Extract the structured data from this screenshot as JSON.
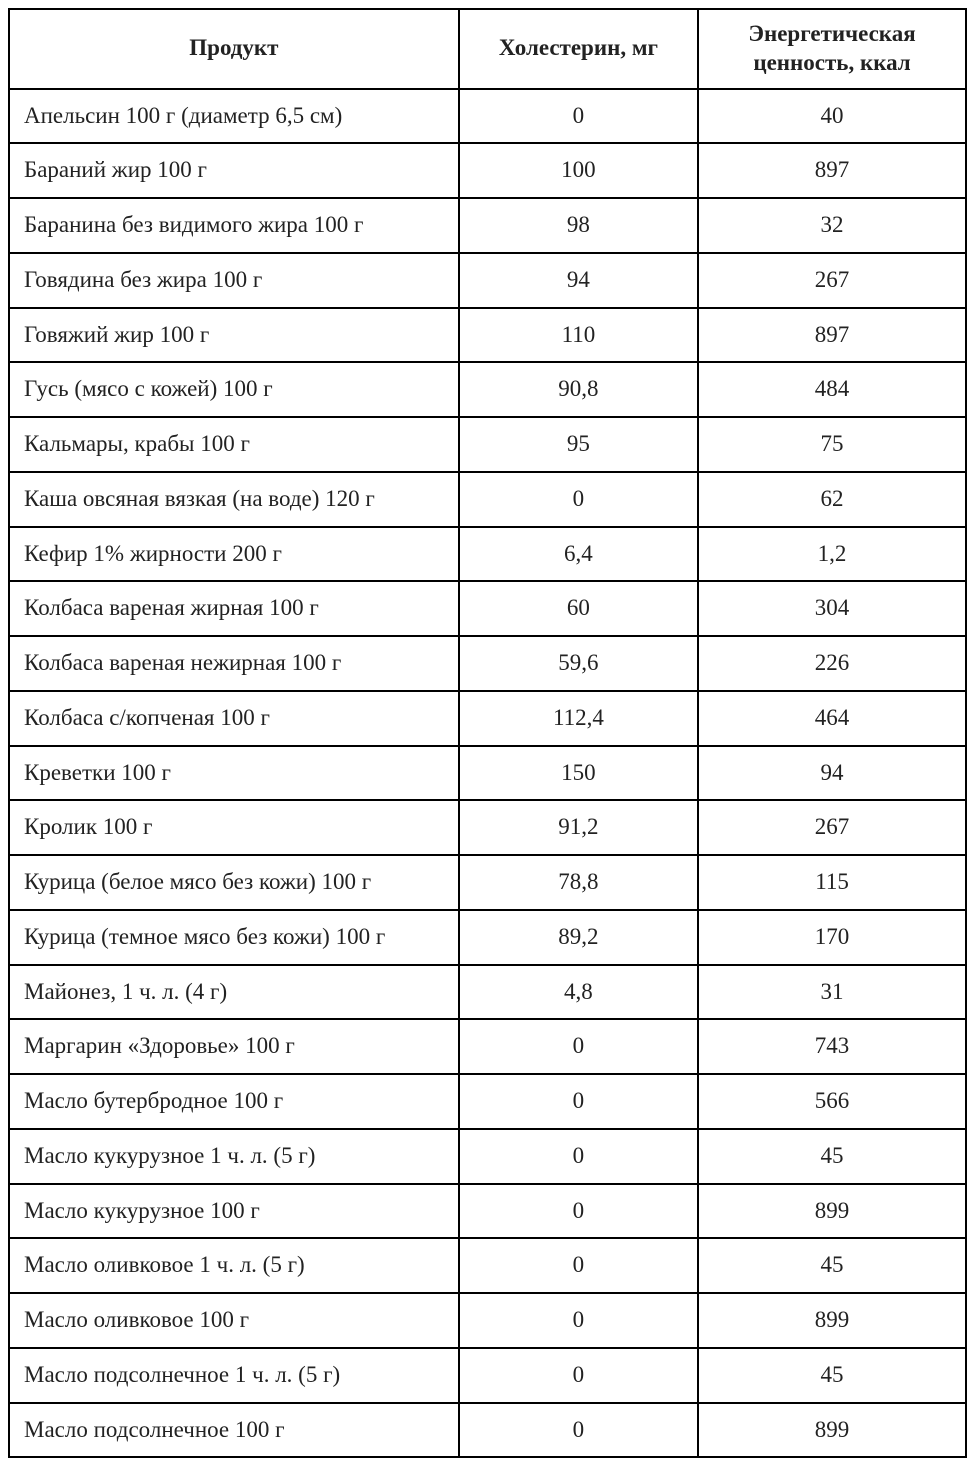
{
  "table": {
    "type": "table",
    "border_color": "#000000",
    "background_color": "#ffffff",
    "text_color": "#222222",
    "header_fontsize": 23,
    "cell_fontsize": 23,
    "border_width": 2,
    "columns": [
      {
        "key": "product",
        "label": "Продукт",
        "align": "left",
        "width_pct": 47
      },
      {
        "key": "cholesterol",
        "label": "Холестерин, мг",
        "align": "center",
        "width_pct": 25
      },
      {
        "key": "energy",
        "label": "Энергетическая ценность, ккал",
        "align": "center",
        "width_pct": 28
      }
    ],
    "rows": [
      {
        "product": "Апельсин 100 г (диаметр 6,5 см)",
        "cholesterol": "0",
        "energy": "40"
      },
      {
        "product": "Бараний жир 100 г",
        "cholesterol": "100",
        "energy": "897"
      },
      {
        "product": "Баранина без видимого жира 100 г",
        "cholesterol": "98",
        "energy": "32"
      },
      {
        "product": "Говядина без жира 100 г",
        "cholesterol": "94",
        "energy": "267"
      },
      {
        "product": "Говяжий жир 100 г",
        "cholesterol": "110",
        "energy": "897"
      },
      {
        "product": "Гусь (мясо с кожей) 100 г",
        "cholesterol": "90,8",
        "energy": "484"
      },
      {
        "product": "Кальмары, крабы 100 г",
        "cholesterol": "95",
        "energy": "75"
      },
      {
        "product": "Каша овсяная вязкая (на воде) 120 г",
        "cholesterol": "0",
        "energy": "62"
      },
      {
        "product": "Кефир 1% жирности 200 г",
        "cholesterol": "6,4",
        "energy": "1,2"
      },
      {
        "product": "Колбаса вареная жирная 100 г",
        "cholesterol": "60",
        "energy": "304"
      },
      {
        "product": "Колбаса вареная нежирная 100 г",
        "cholesterol": "59,6",
        "energy": "226"
      },
      {
        "product": "Колбаса с/копченая 100 г",
        "cholesterol": "112,4",
        "energy": "464"
      },
      {
        "product": "Креветки 100 г",
        "cholesterol": "150",
        "energy": "94"
      },
      {
        "product": "Кролик 100 г",
        "cholesterol": "91,2",
        "energy": "267"
      },
      {
        "product": "Курица (белое мясо без кожи) 100 г",
        "cholesterol": "78,8",
        "energy": "115"
      },
      {
        "product": "Курица (темное мясо без кожи) 100 г",
        "cholesterol": "89,2",
        "energy": "170"
      },
      {
        "product": "Майонез, 1 ч. л. (4 г)",
        "cholesterol": "4,8",
        "energy": "31"
      },
      {
        "product": "Маргарин «Здоровье» 100 г",
        "cholesterol": "0",
        "energy": "743"
      },
      {
        "product": "Масло бутербродное 100 г",
        "cholesterol": "0",
        "energy": "566"
      },
      {
        "product": "Масло кукурузное 1 ч. л. (5 г)",
        "cholesterol": "0",
        "energy": "45"
      },
      {
        "product": "Масло кукурузное 100 г",
        "cholesterol": "0",
        "energy": "899"
      },
      {
        "product": "Масло оливковое 1 ч. л. (5 г)",
        "cholesterol": "0",
        "energy": "45"
      },
      {
        "product": "Масло оливковое 100 г",
        "cholesterol": "0",
        "energy": "899"
      },
      {
        "product": "Масло подсолнечное 1 ч. л. (5 г)",
        "cholesterol": "0",
        "energy": "45"
      },
      {
        "product": "Масло подсолнечное 100 г",
        "cholesterol": "0",
        "energy": "899"
      }
    ]
  }
}
